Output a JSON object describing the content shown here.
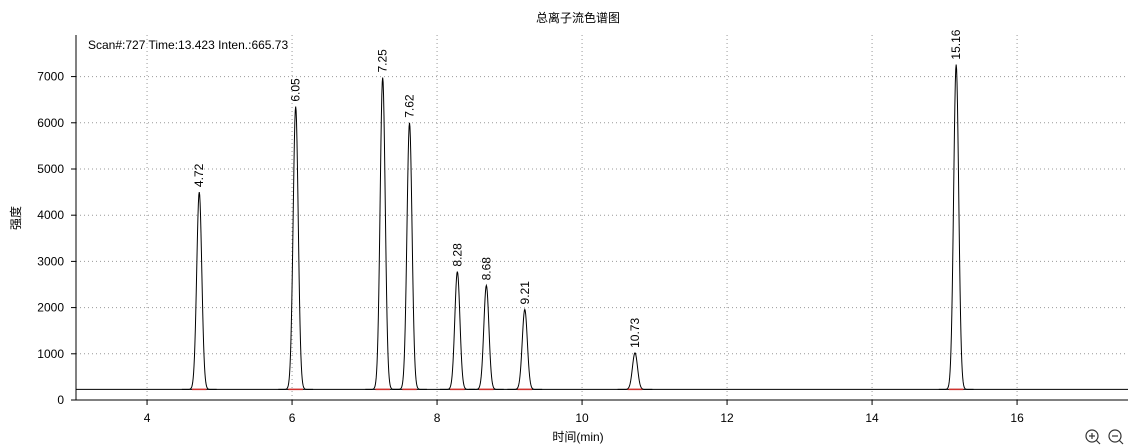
{
  "chart_data": {
    "type": "chromatogram",
    "title": "总离子流色谱图",
    "status": "Scan#:727  Time:13.423  Inten.:665.73",
    "x_label": "时间(min)",
    "y_label": "强度",
    "xlim": [
      3.02,
      17.53
    ],
    "xticks": [
      4,
      6,
      8,
      10,
      12,
      14,
      16
    ],
    "ylim": [
      0,
      7900
    ],
    "yticks": [
      0,
      1000,
      2000,
      3000,
      4000,
      5000,
      6000,
      7000
    ],
    "grid": true,
    "baseline": 230,
    "line_color": "#000000",
    "label_color": "#d0312d",
    "peaks": {
      "x": [
        4.72,
        6.05,
        7.25,
        7.62,
        8.28,
        8.68,
        9.21,
        10.73,
        15.16
      ],
      "values": [
        4500,
        6350,
        6980,
        6000,
        2780,
        2480,
        1960,
        1020,
        7260
      ]
    }
  }
}
